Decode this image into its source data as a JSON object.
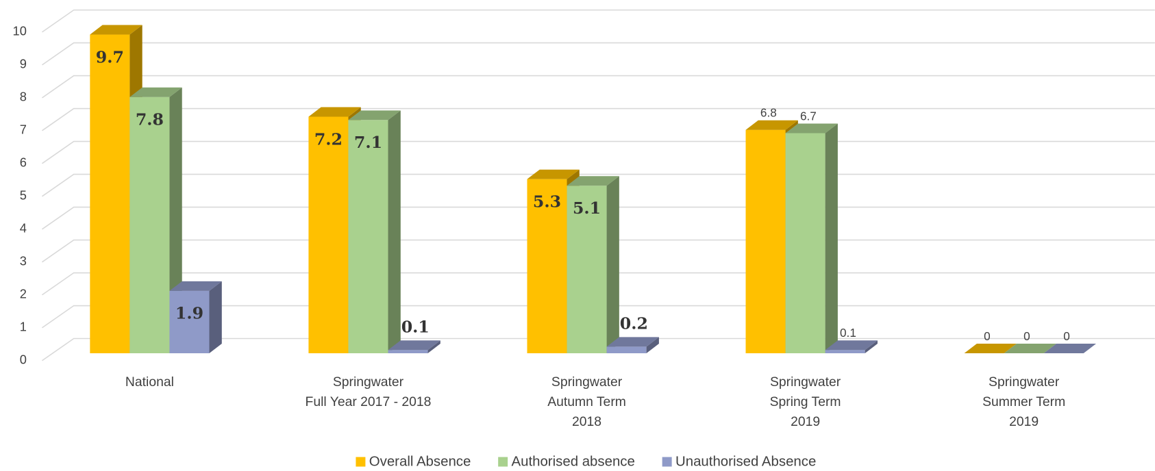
{
  "chart_data": {
    "type": "bar3d",
    "categories": [
      [
        "National"
      ],
      [
        "Springwater",
        "Full Year 2017 - 2018"
      ],
      [
        "Springwater",
        "Autumn Term",
        "2018"
      ],
      [
        "Springwater",
        "Spring Term",
        "2019"
      ],
      [
        "Springwater",
        "Summer Term",
        "2019"
      ]
    ],
    "series": [
      {
        "name": "Overall Absence",
        "color": "#FFC000",
        "values": [
          9.7,
          7.2,
          5.3,
          6.8,
          0
        ]
      },
      {
        "name": "Authorised absence",
        "color": "#A9D18E",
        "values": [
          7.8,
          7.1,
          5.1,
          6.7,
          0
        ]
      },
      {
        "name": "Unauthorised Absence",
        "color": "#8F9AC8",
        "values": [
          1.9,
          0.1,
          0.2,
          0.1,
          0
        ]
      }
    ],
    "ylim": [
      0,
      10
    ],
    "yticks": [
      0,
      1,
      2,
      3,
      4,
      5,
      6,
      7,
      8,
      9,
      10
    ],
    "grid": true,
    "legend": "bottom"
  }
}
